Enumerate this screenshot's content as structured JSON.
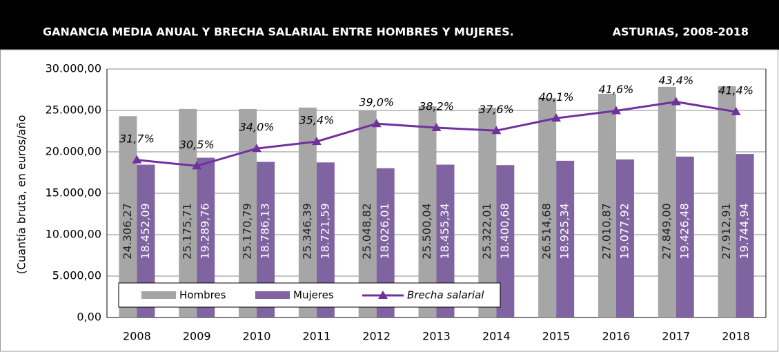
{
  "chart_data": {
    "type": "bar_line",
    "title": "GANANCIA MEDIA ANUAL Y BRECHA SALARIAL ENTRE HOMBRES Y MUJERES.",
    "subtitle": "ASTURIAS, 2008-2018",
    "y_label": "(Cuantía bruta, en euros/año",
    "categories": [
      "2008",
      "2009",
      "2010",
      "2011",
      "2012",
      "2013",
      "2014",
      "2015",
      "2016",
      "2017",
      "2018"
    ],
    "series": [
      {
        "name": "Hombres",
        "color": "#a6a6a6",
        "kind": "bar",
        "values": [
          24306.27,
          25175.71,
          25170.79,
          25346.39,
          25048.82,
          25500.04,
          25322.01,
          26514.68,
          27010.87,
          27849.0,
          27912.91
        ],
        "value_labels": [
          "24.306,27",
          "25.175,71",
          "25.170,79",
          "25.346,39",
          "25.048,82",
          "25.500,04",
          "25.322,01",
          "26.514,68",
          "27.010,87",
          "27.849,00",
          "27.912,91"
        ]
      },
      {
        "name": "Mujeres",
        "color": "#8064a2",
        "kind": "bar",
        "values": [
          18452.09,
          19289.76,
          18786.13,
          18721.59,
          18026.01,
          18455.34,
          18400.68,
          18925.34,
          19077.92,
          19426.48,
          19744.94
        ],
        "value_labels": [
          "18.452,09",
          "19.289,76",
          "18.786,13",
          "18.721,59",
          "18.026,01",
          "18.455,34",
          "18.400,68",
          "18.925,34",
          "19.077,92",
          "19.426,48",
          "19.744,94"
        ]
      },
      {
        "name": "Brecha salarial",
        "color": "#7030a0",
        "kind": "line",
        "axis": "y2",
        "values": [
          31.7,
          30.5,
          34.0,
          35.4,
          39.0,
          38.2,
          37.6,
          40.1,
          41.6,
          43.4,
          41.4
        ],
        "value_labels": [
          "31,7%",
          "30,5%",
          "34,0%",
          "35,4%",
          "39,0%",
          "38,2%",
          "37,6%",
          "40,1%",
          "41,6%",
          "43,4%",
          "41,4%"
        ]
      }
    ],
    "ylim": [
      0,
      30000
    ],
    "yticks": [
      {
        "value": 0,
        "label": "0,00"
      },
      {
        "value": 5000,
        "label": "5.000,00"
      },
      {
        "value": 10000,
        "label": "10.000,00"
      },
      {
        "value": 15000,
        "label": "15.000,00"
      },
      {
        "value": 20000,
        "label": "20.000,00"
      },
      {
        "value": 25000,
        "label": "25.000,00"
      },
      {
        "value": 30000,
        "label": "30.000,00"
      }
    ],
    "y2lim": [
      0,
      50
    ],
    "grid": true
  }
}
